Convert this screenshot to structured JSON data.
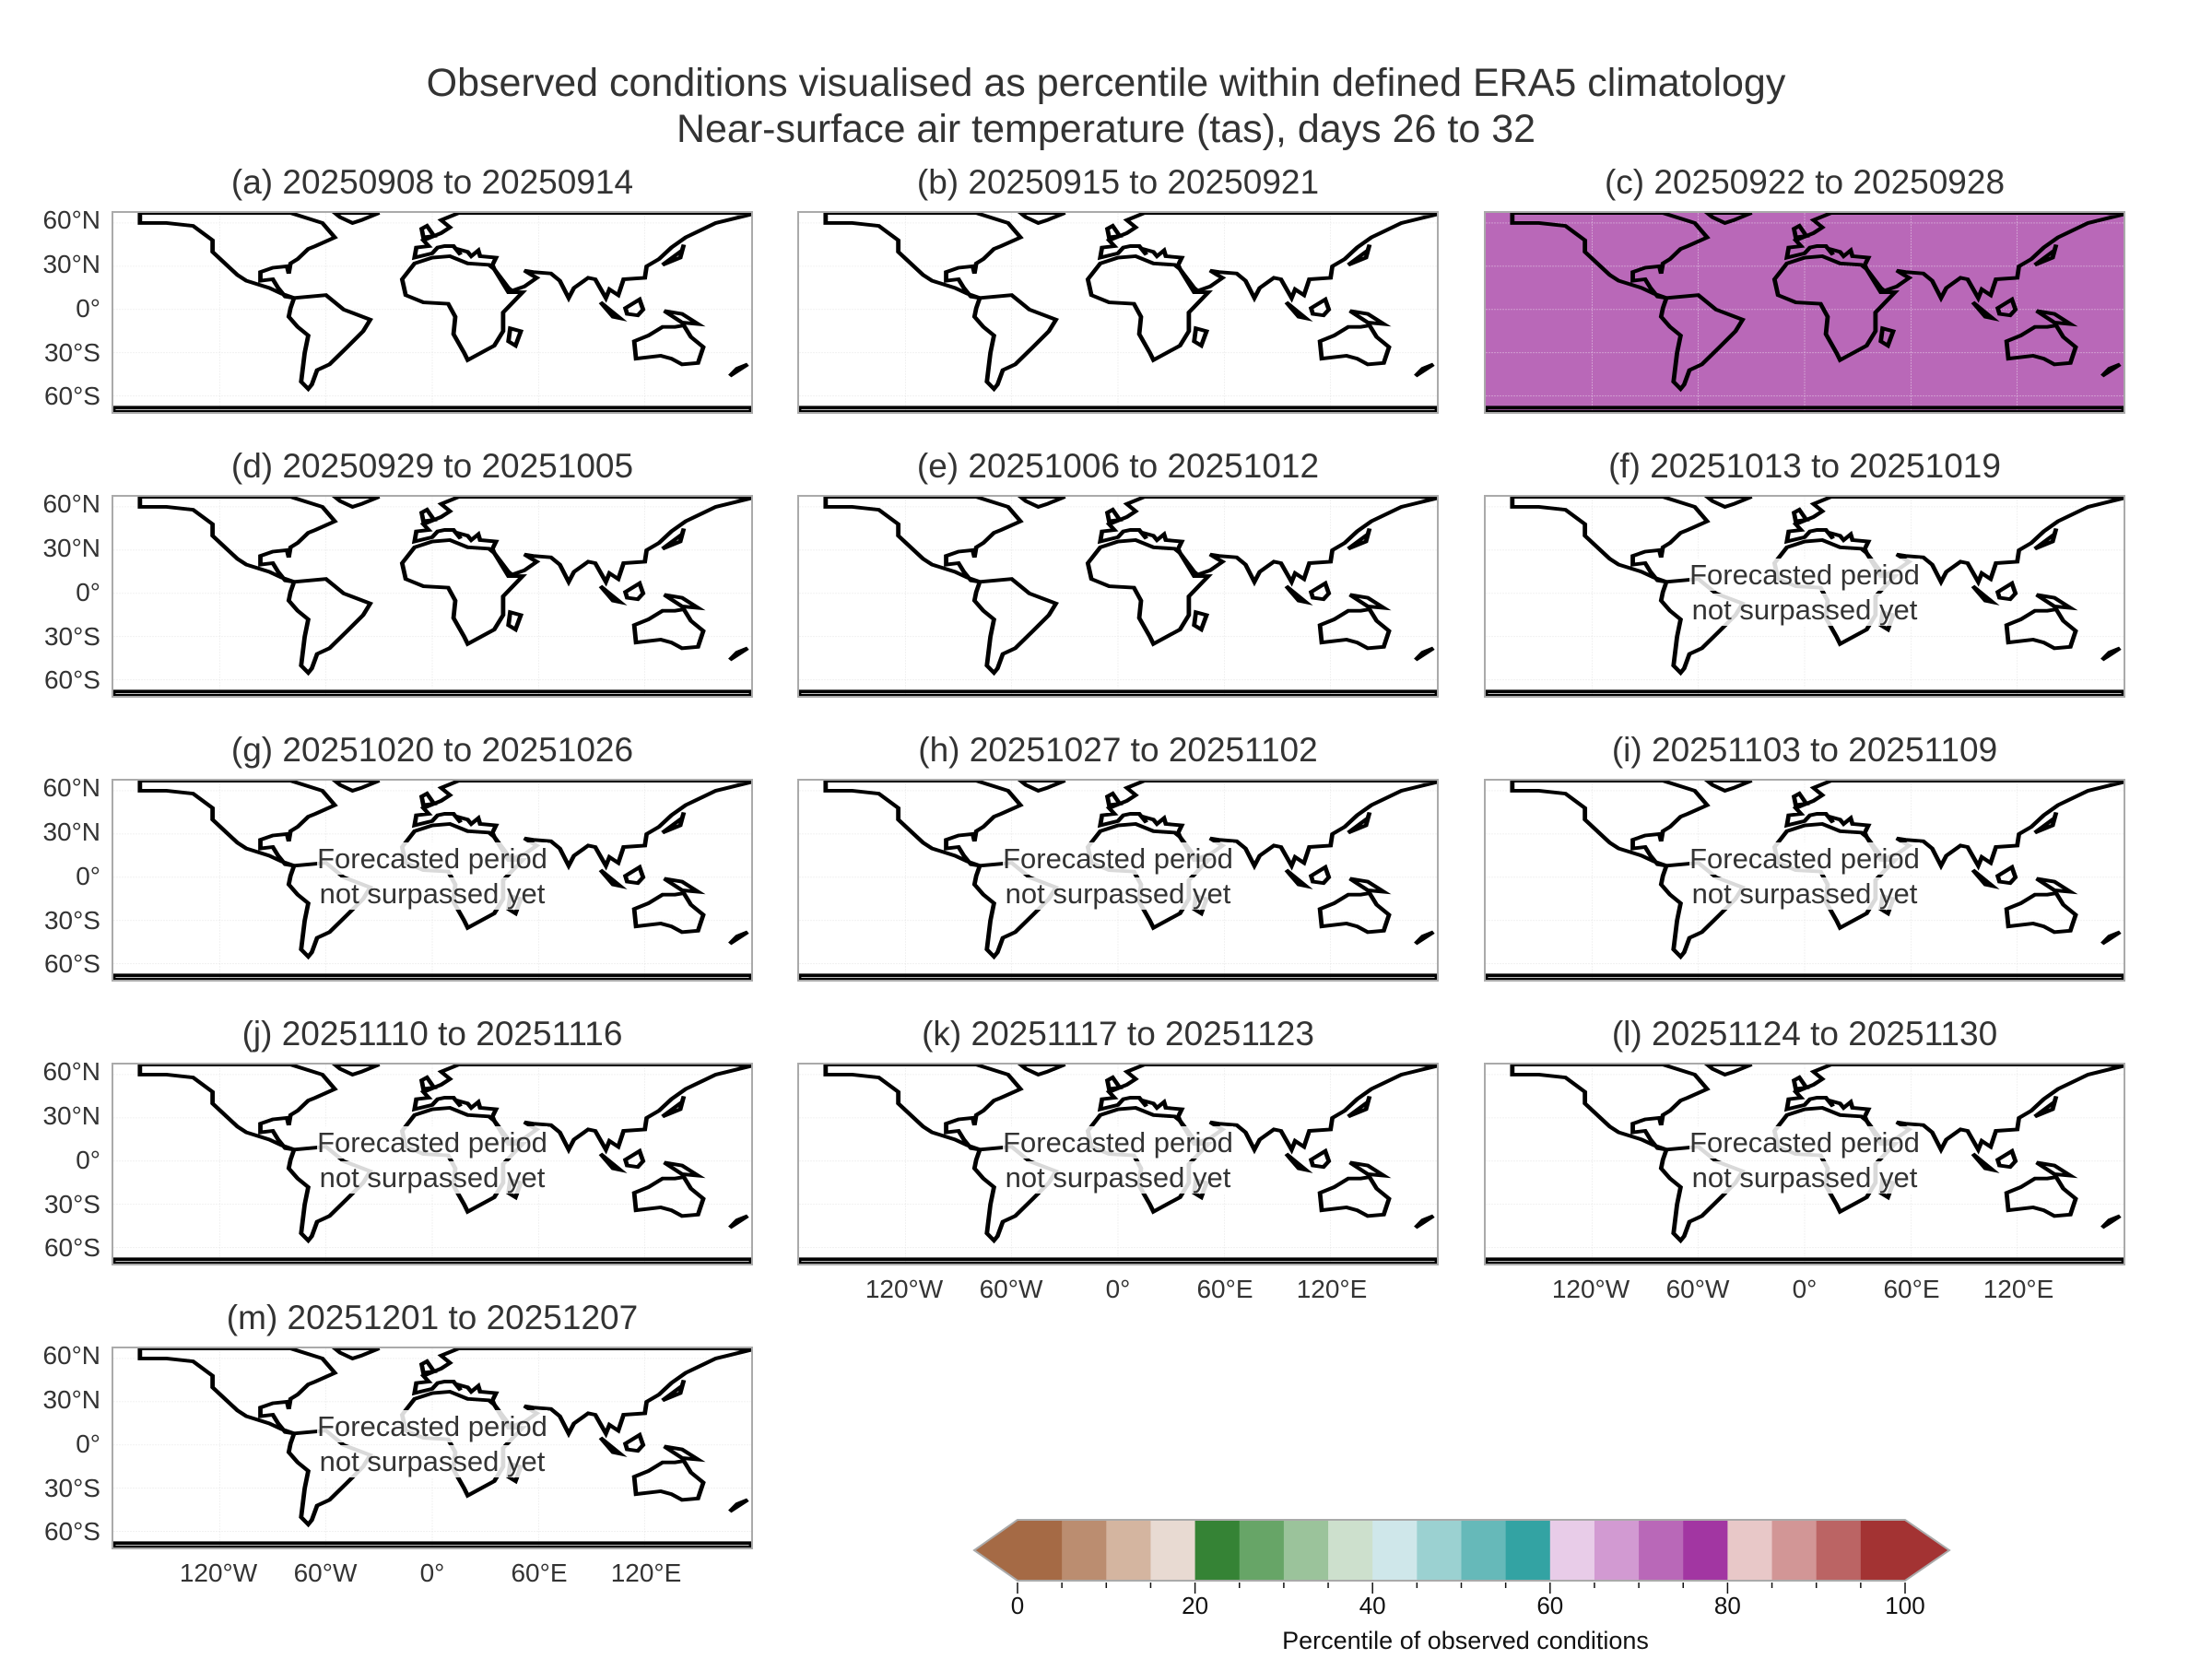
{
  "title": {
    "line1": "Observed conditions visualised as percentile within defined ERA5 climatology",
    "line2": "Near-surface air temperature (tas), days 26 to 32"
  },
  "forecast_text": {
    "line1": "Forecasted period",
    "line2": "not surpassed yet"
  },
  "lat_labels": [
    "60°N",
    "30°N",
    "0°",
    "30°S",
    "60°S"
  ],
  "lon_labels": [
    "120°W",
    "60°W",
    "0°",
    "60°E",
    "120°E"
  ],
  "panels": [
    {
      "label": "(a) 20250908 to 20250914",
      "state": "observed"
    },
    {
      "label": "(b) 20250915 to 20250921",
      "state": "observed"
    },
    {
      "label": "(c) 20250922 to 20250928",
      "state": "observed",
      "ocean_color": "#b968b8"
    },
    {
      "label": "(d) 20250929 to 20251005",
      "state": "observed"
    },
    {
      "label": "(e) 20251006 to 20251012",
      "state": "observed"
    },
    {
      "label": "(f) 20251013 to 20251019",
      "state": "forecast"
    },
    {
      "label": "(g) 20251020 to 20251026",
      "state": "forecast"
    },
    {
      "label": "(h) 20251027 to 20251102",
      "state": "forecast"
    },
    {
      "label": "(i) 20251103 to 20251109",
      "state": "forecast"
    },
    {
      "label": "(j) 20251110 to 20251116",
      "state": "forecast"
    },
    {
      "label": "(k) 20251117 to 20251123",
      "state": "forecast"
    },
    {
      "label": "(l) 20251124 to 20251130",
      "state": "forecast"
    },
    {
      "label": "(m) 20251201 to 20251207",
      "state": "forecast"
    }
  ],
  "colorbar": {
    "label": "Percentile of observed conditions",
    "ticks": [
      "0",
      "20",
      "40",
      "60",
      "80",
      "100"
    ],
    "tick_values": [
      0,
      20,
      40,
      60,
      80,
      100
    ],
    "range": [
      0,
      100
    ],
    "bin_width": 5,
    "colors": [
      "#a56a45",
      "#bb8d70",
      "#d4b5a0",
      "#e8dad2",
      "#358335",
      "#67a567",
      "#9bc39b",
      "#cde0cd",
      "#cfe7ea",
      "#9bd1d1",
      "#66b9b9",
      "#33a3a3",
      "#e8cce8",
      "#d29ad2",
      "#b968b8",
      "#a236a2",
      "#e8c8c8",
      "#d29696",
      "#bb6464",
      "#a33333"
    ]
  }
}
